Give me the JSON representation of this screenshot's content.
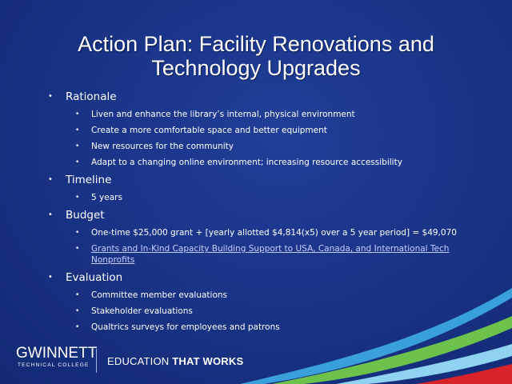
{
  "slide": {
    "title": "Action Plan: Facility Renovations and Technology Upgrades",
    "sections": [
      {
        "heading": "Rationale",
        "items": [
          "Liven and enhance the library’s internal, physical environment",
          "Create a more comfortable space and better equipment",
          "New resources for the community",
          "Adapt to a changing online environment; increasing resource accessibility"
        ]
      },
      {
        "heading": "Timeline",
        "items": [
          "5 years"
        ]
      },
      {
        "heading": "Budget",
        "items": [
          "One-time $25,000 grant + [yearly allotted $4,814(x5) over a 5 year period] = $49,070"
        ],
        "link": "Grants and In-Kind Capacity Building Support to USA, Canada, and International Tech Nonprofits"
      },
      {
        "heading": "Evaluation",
        "items": [
          "Committee member evaluations",
          "Stakeholder evaluations",
          "Qualtrics surveys for employees and patrons"
        ]
      }
    ]
  },
  "footer": {
    "logo_main": "GWINNETT",
    "logo_sub": "TECHNICAL COLLEGE",
    "tagline_regular": "EDUCATION ",
    "tagline_bold": "THAT WORKS"
  },
  "colors": {
    "background": "#1a3488",
    "text": "#ffffff",
    "link": "#c7cfff",
    "swoosh_green": "#6cc24a",
    "swoosh_blue": "#3aa0dc",
    "swoosh_red": "#d8232a"
  }
}
